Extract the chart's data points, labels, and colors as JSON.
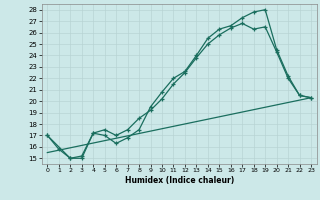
{
  "bg_color": "#cce8e8",
  "grid_color": "#aacccc",
  "line_color": "#1a6e5e",
  "xlabel": "Humidex (Indice chaleur)",
  "xlim": [
    -0.5,
    23.5
  ],
  "ylim": [
    14.5,
    28.5
  ],
  "xticks": [
    0,
    1,
    2,
    3,
    4,
    5,
    6,
    7,
    8,
    9,
    10,
    11,
    12,
    13,
    14,
    15,
    16,
    17,
    18,
    19,
    20,
    21,
    22,
    23
  ],
  "yticks": [
    15,
    16,
    17,
    18,
    19,
    20,
    21,
    22,
    23,
    24,
    25,
    26,
    27,
    28
  ],
  "line1_x": [
    0,
    1,
    2,
    3,
    4,
    5,
    6,
    7,
    8,
    9,
    10,
    11,
    12,
    13,
    14,
    15,
    16,
    17,
    18,
    19,
    20,
    21,
    22,
    23
  ],
  "line1_y": [
    17.0,
    15.8,
    15.0,
    15.0,
    17.2,
    17.0,
    16.3,
    16.8,
    17.5,
    19.5,
    20.8,
    22.0,
    22.6,
    24.0,
    25.5,
    26.3,
    26.6,
    27.3,
    27.8,
    28.0,
    24.5,
    22.2,
    20.5,
    20.3
  ],
  "line2_x": [
    0,
    2,
    3,
    4,
    5,
    6,
    7,
    8,
    9,
    10,
    11,
    12,
    13,
    14,
    15,
    16,
    17,
    18,
    19,
    20,
    21,
    22,
    23
  ],
  "line2_y": [
    17.0,
    15.0,
    15.2,
    17.2,
    17.5,
    17.0,
    17.5,
    18.5,
    19.2,
    20.2,
    21.5,
    22.5,
    23.8,
    25.0,
    25.8,
    26.4,
    26.8,
    26.3,
    26.5,
    24.3,
    22.0,
    20.5,
    20.3
  ],
  "line3_x": [
    0,
    23
  ],
  "line3_y": [
    15.5,
    20.3
  ]
}
